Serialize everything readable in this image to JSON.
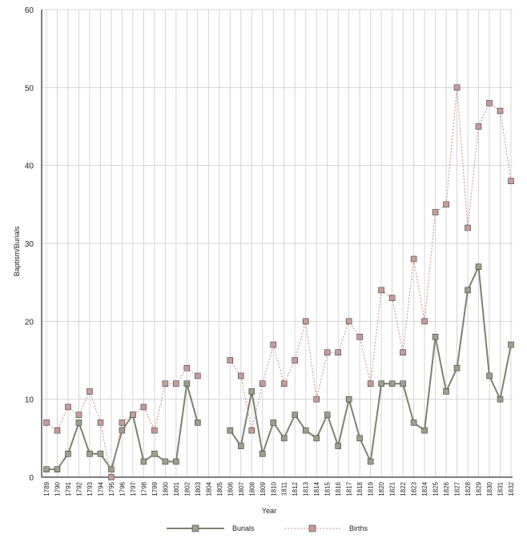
{
  "chart_data": {
    "type": "line",
    "xlabel": "Year",
    "ylabel": "Baptism/Burials",
    "ylim": [
      0,
      60
    ],
    "yticks": [
      0,
      10,
      20,
      30,
      40,
      50,
      60
    ],
    "grid": "vertical",
    "legend": "bottom-center",
    "categories": [
      "1789",
      "1790",
      "1791",
      "1792",
      "1793",
      "1794",
      "1795",
      "1796",
      "1797",
      "1798",
      "1799",
      "1800",
      "1801",
      "1802",
      "1803",
      "1804",
      "1805",
      "1806",
      "1807",
      "1808",
      "1809",
      "1810",
      "1811",
      "1812",
      "1813",
      "1814",
      "1815",
      "1816",
      "1817",
      "1818",
      "1819",
      "1820",
      "1821",
      "1822",
      "1823",
      "1824",
      "1825",
      "1826",
      "1827",
      "1828",
      "1829",
      "1830",
      "1831",
      "1832"
    ],
    "series": [
      {
        "name": "Burials",
        "color": "#7d8271",
        "marker_color": "#9aa08a",
        "values": [
          1,
          1,
          3,
          7,
          3,
          3,
          1,
          6,
          8,
          2,
          3,
          2,
          2,
          12,
          7,
          null,
          null,
          6,
          4,
          11,
          3,
          7,
          5,
          8,
          6,
          5,
          8,
          4,
          10,
          5,
          2,
          12,
          12,
          12,
          7,
          6,
          18,
          11,
          14,
          24,
          27,
          13,
          10,
          17
        ]
      },
      {
        "name": "Births",
        "color": "#c98c8c",
        "marker_color": "#c99a9a",
        "values": [
          7,
          6,
          9,
          8,
          11,
          7,
          0,
          7,
          8,
          9,
          6,
          12,
          12,
          14,
          13,
          null,
          null,
          15,
          13,
          6,
          12,
          17,
          12,
          15,
          20,
          10,
          16,
          16,
          20,
          18,
          12,
          24,
          23,
          16,
          28,
          20,
          34,
          35,
          50,
          32,
          45,
          48,
          47,
          38
        ]
      }
    ]
  }
}
